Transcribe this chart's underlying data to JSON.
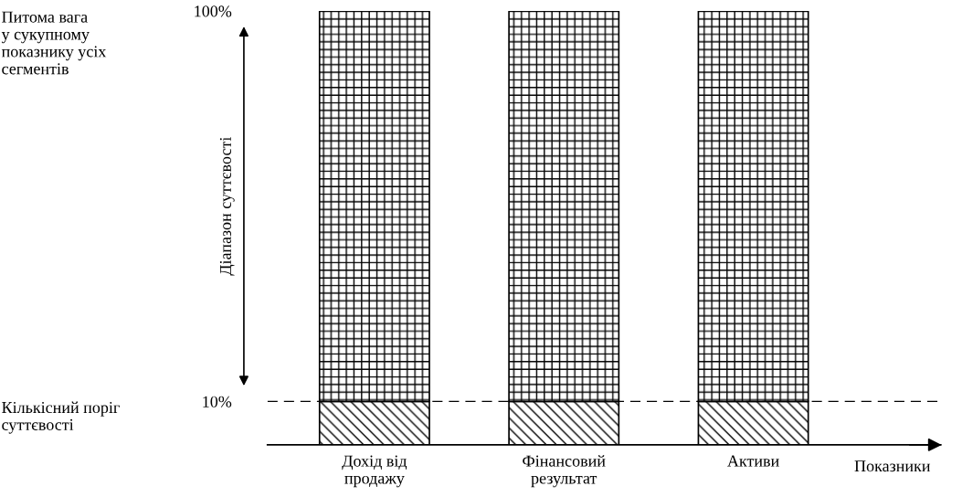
{
  "chart_data": {
    "type": "bar",
    "stacked": true,
    "xlabel": "Показники",
    "categories": [
      "Дохід від\nпродажу",
      "Фінансовий\nрезультат",
      "Активи"
    ],
    "series": [
      {
        "color": "#000000",
        "values": [
          10,
          10,
          10
        ]
      },
      {
        "color": "#000000",
        "values": [
          90,
          90,
          90
        ]
      }
    ],
    "ylim": [
      0,
      100
    ],
    "yticks": [
      {
        "value": 10,
        "label": "10%"
      },
      {
        "value": 100,
        "label": "100%"
      }
    ],
    "ref_lines": [
      {
        "axis": "y",
        "value": 10,
        "label": "Кількісний поріг\nсуттєвості",
        "color": "#000000",
        "line_style": "dashed"
      }
    ],
    "annotations": [
      "Діапазон суттєвості",
      "Питома вага\nу сукупному\nпоказнику усіх\nсегментів"
    ],
    "grid": false,
    "legend": false
  }
}
